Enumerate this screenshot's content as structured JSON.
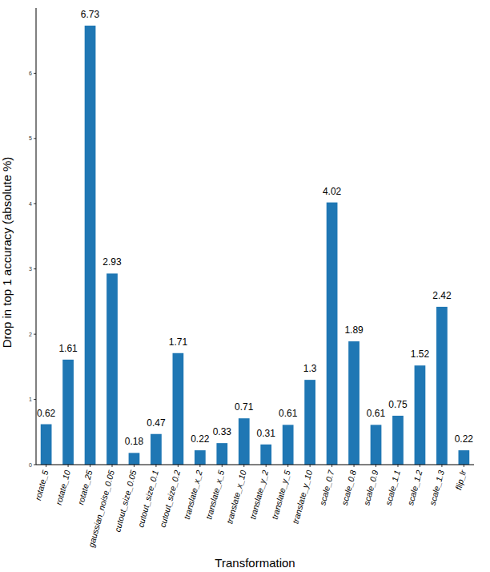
{
  "chart_data": {
    "type": "bar",
    "x_label": "Transformation",
    "y_label": "Drop in top 1 accuracy (absolute %)",
    "categories": [
      "rotate_5",
      "rotate_10",
      "rotate_25",
      "gaussian_noise_0.05",
      "cutout_size_0.05",
      "cutout_size_0.1",
      "cutout_size_0.2",
      "translate_x_2",
      "translate_x_5",
      "translate_x_10",
      "translate_y_2",
      "translate_y_5",
      "translate_y_10",
      "scale_0.7",
      "scale_0.8",
      "scale_0.9",
      "scale_1.1",
      "scale_1.2",
      "scale_1.3",
      "flip_lr"
    ],
    "values": [
      0.62,
      1.61,
      6.73,
      2.93,
      0.18,
      0.47,
      1.71,
      0.22,
      0.33,
      0.71,
      0.31,
      0.61,
      1.3,
      4.02,
      1.89,
      0.61,
      0.75,
      1.52,
      2.42,
      0.22
    ],
    "color": "#1f77b4",
    "ylim": [
      0,
      7
    ],
    "yticks": [
      0,
      1,
      2,
      3,
      4,
      5,
      6
    ],
    "grid": false,
    "data_labels": true
  }
}
